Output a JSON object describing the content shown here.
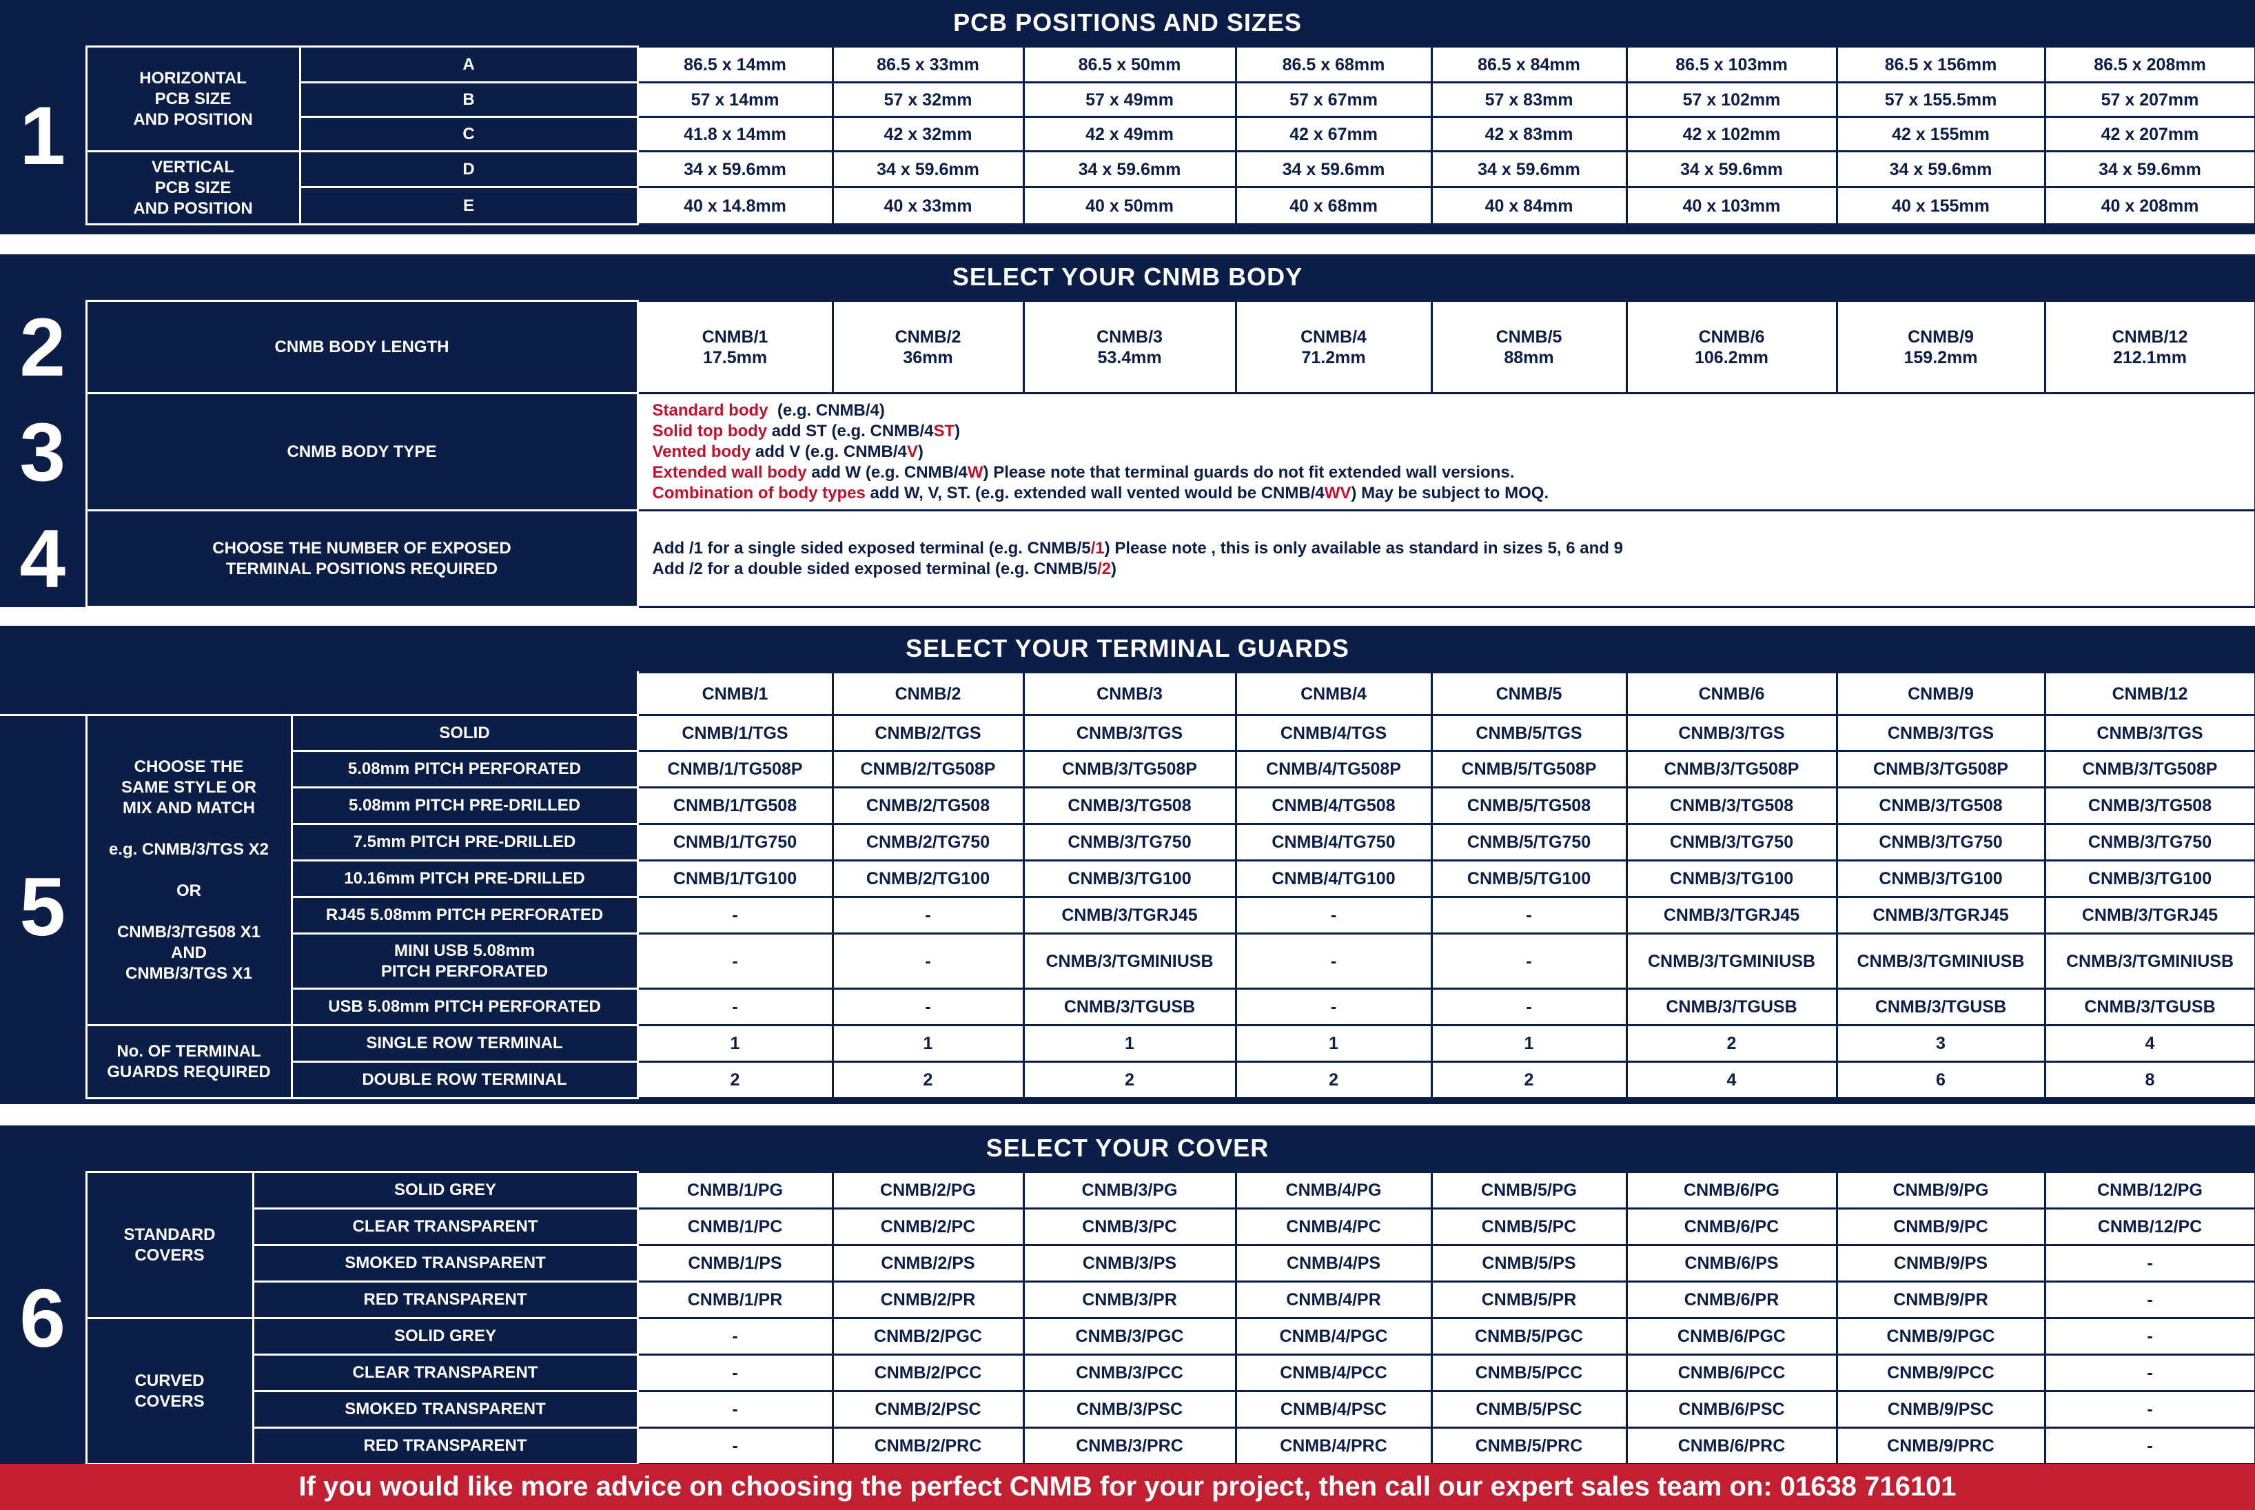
{
  "sizes_cols": [
    "",
    "",
    "",
    "",
    "",
    "",
    "",
    ""
  ],
  "s1": {
    "num": "1",
    "title": "PCB POSITIONS AND SIZES",
    "horizontal_label": "HORIZONTAL\nPCB SIZE\nAND POSITION",
    "vertical_label": "VERTICAL\nPCB SIZE\nAND POSITION",
    "rows": [
      {
        "pos": "A",
        "cells": [
          "86.5 x 14mm",
          "86.5 x 33mm",
          "86.5 x 50mm",
          "86.5 x 68mm",
          "86.5 x 84mm",
          "86.5 x 103mm",
          "86.5 x 156mm",
          "86.5 x 208mm"
        ]
      },
      {
        "pos": "B",
        "cells": [
          "57 x 14mm",
          "57 x 32mm",
          "57 x 49mm",
          "57 x 67mm",
          "57 x 83mm",
          "57 x 102mm",
          "57 x 155.5mm",
          "57 x 207mm"
        ]
      },
      {
        "pos": "C",
        "cells": [
          "41.8 x 14mm",
          "42 x 32mm",
          "42 x 49mm",
          "42 x 67mm",
          "42 x 83mm",
          "42 x 102mm",
          "42 x 155mm",
          "42 x 207mm"
        ]
      },
      {
        "pos": "D",
        "cells": [
          "34 x 59.6mm",
          "34 x 59.6mm",
          "34 x 59.6mm",
          "34 x 59.6mm",
          "34 x 59.6mm",
          "34 x 59.6mm",
          "34 x 59.6mm",
          "34 x 59.6mm"
        ]
      },
      {
        "pos": "E",
        "cells": [
          "40 x 14.8mm",
          "40 x 33mm",
          "40 x 50mm",
          "40 x 68mm",
          "40 x 84mm",
          "40 x 103mm",
          "40 x 155mm",
          "40 x 208mm"
        ]
      }
    ]
  },
  "s2": {
    "title": "SELECT YOUR CNMB BODY",
    "num": "2",
    "label": "CNMB BODY LENGTH",
    "cells": [
      {
        "name": "CNMB/1",
        "len": "17.5mm"
      },
      {
        "name": "CNMB/2",
        "len": "36mm"
      },
      {
        "name": "CNMB/3",
        "len": "53.4mm"
      },
      {
        "name": "CNMB/4",
        "len": "71.2mm"
      },
      {
        "name": "CNMB/5",
        "len": "88mm"
      },
      {
        "name": "CNMB/6",
        "len": "106.2mm"
      },
      {
        "name": "CNMB/9",
        "len": "159.2mm"
      },
      {
        "name": "CNMB/12",
        "len": "212.1mm"
      }
    ]
  },
  "s3": {
    "num": "3",
    "label": "CNMB BODY TYPE",
    "lines": [
      [
        {
          "t": "Standard body",
          "red": true
        },
        {
          "t": "  (e.g. CNMB/4)"
        }
      ],
      [
        {
          "t": "Solid top body",
          "red": true
        },
        {
          "t": " add ST (e.g. CNMB/4"
        },
        {
          "t": "ST",
          "red": true
        },
        {
          "t": ")"
        }
      ],
      [
        {
          "t": "Vented body",
          "red": true
        },
        {
          "t": " add V (e.g. CNMB/4"
        },
        {
          "t": "V",
          "red": true
        },
        {
          "t": ")"
        }
      ],
      [
        {
          "t": "Extended wall body",
          "red": true
        },
        {
          "t": " add W (e.g. CNMB/4"
        },
        {
          "t": "W",
          "red": true
        },
        {
          "t": ") Please note that terminal guards do not fit extended wall versions."
        }
      ],
      [
        {
          "t": "Combination of body types",
          "red": true
        },
        {
          "t": " add W, V, ST. (e.g. extended wall vented would be CNMB/4"
        },
        {
          "t": "WV",
          "red": true
        },
        {
          "t": ") May be subject to MOQ."
        }
      ]
    ]
  },
  "s4": {
    "num": "4",
    "label": "CHOOSE THE NUMBER OF EXPOSED\nTERMINAL  POSITIONS REQUIRED",
    "lines": [
      [
        {
          "t": "Add /1 for a single sided exposed terminal (e.g. CNMB/5"
        },
        {
          "t": "/1",
          "red": true
        },
        {
          "t": ") Please note , this is only available as standard in sizes 5, 6 and 9"
        }
      ],
      [
        {
          "t": "Add /2 for a double sided exposed terminal (e.g. CNMB/5"
        },
        {
          "t": "/2",
          "red": true
        },
        {
          "t": ")"
        }
      ]
    ]
  },
  "s5": {
    "title": "SELECT YOUR TERMINAL GUARDS",
    "num": "5",
    "headers": [
      "CNMB/1",
      "CNMB/2",
      "CNMB/3",
      "CNMB/4",
      "CNMB/5",
      "CNMB/6",
      "CNMB/9",
      "CNMB/12"
    ],
    "choose_label": "CHOOSE THE\nSAME STYLE OR\nMIX AND MATCH\n\ne.g. CNMB/3/TGS X2\n\nOR\n\nCNMB/3/TG508 X1\nAND\nCNMB/3/TGS X1",
    "guards_label": "No. OF TERMINAL\nGUARDS REQUIRED",
    "rows": [
      {
        "label": "SOLID",
        "cells": [
          "CNMB/1/TGS",
          "CNMB/2/TGS",
          "CNMB/3/TGS",
          "CNMB/4/TGS",
          "CNMB/5/TGS",
          "CNMB/3/TGS",
          "CNMB/3/TGS",
          "CNMB/3/TGS"
        ]
      },
      {
        "label": "5.08mm PITCH PERFORATED",
        "cells": [
          "CNMB/1/TG508P",
          "CNMB/2/TG508P",
          "CNMB/3/TG508P",
          "CNMB/4/TG508P",
          "CNMB/5/TG508P",
          "CNMB/3/TG508P",
          "CNMB/3/TG508P",
          "CNMB/3/TG508P"
        ]
      },
      {
        "label": "5.08mm PITCH PRE-DRILLED",
        "cells": [
          "CNMB/1/TG508",
          "CNMB/2/TG508",
          "CNMB/3/TG508",
          "CNMB/4/TG508",
          "CNMB/5/TG508",
          "CNMB/3/TG508",
          "CNMB/3/TG508",
          "CNMB/3/TG508"
        ]
      },
      {
        "label": "7.5mm PITCH PRE-DRILLED",
        "cells": [
          "CNMB/1/TG750",
          "CNMB/2/TG750",
          "CNMB/3/TG750",
          "CNMB/4/TG750",
          "CNMB/5/TG750",
          "CNMB/3/TG750",
          "CNMB/3/TG750",
          "CNMB/3/TG750"
        ]
      },
      {
        "label": "10.16mm PITCH PRE-DRILLED",
        "cells": [
          "CNMB/1/TG100",
          "CNMB/2/TG100",
          "CNMB/3/TG100",
          "CNMB/4/TG100",
          "CNMB/5/TG100",
          "CNMB/3/TG100",
          "CNMB/3/TG100",
          "CNMB/3/TG100"
        ]
      },
      {
        "label": "RJ45 5.08mm PITCH PERFORATED",
        "cells": [
          "-",
          "-",
          "CNMB/3/TGRJ45",
          "-",
          "-",
          "CNMB/3/TGRJ45",
          "CNMB/3/TGRJ45",
          "CNMB/3/TGRJ45"
        ]
      },
      {
        "label": "MINI USB 5.08mm\nPITCH PERFORATED",
        "cells": [
          "-",
          "-",
          "CNMB/3/TGMINIUSB",
          "-",
          "-",
          "CNMB/3/TGMINIUSB",
          "CNMB/3/TGMINIUSB",
          "CNMB/3/TGMINIUSB"
        ]
      },
      {
        "label": "USB 5.08mm PITCH PERFORATED",
        "cells": [
          "-",
          "-",
          "CNMB/3/TGUSB",
          "-",
          "-",
          "CNMB/3/TGUSB",
          "CNMB/3/TGUSB",
          "CNMB/3/TGUSB"
        ]
      }
    ],
    "guard_rows": [
      {
        "label": "SINGLE ROW TERMINAL",
        "cells": [
          "1",
          "1",
          "1",
          "1",
          "1",
          "2",
          "3",
          "4"
        ]
      },
      {
        "label": "DOUBLE ROW TERMINAL",
        "cells": [
          "2",
          "2",
          "2",
          "2",
          "2",
          "4",
          "6",
          "8"
        ]
      }
    ]
  },
  "s6": {
    "title": "SELECT YOUR COVER",
    "num": "6",
    "standard_label": "STANDARD\nCOVERS",
    "curved_label": "CURVED\nCOVERS",
    "standard_rows": [
      {
        "label": "SOLID GREY",
        "cells": [
          "CNMB/1/PG",
          "CNMB/2/PG",
          "CNMB/3/PG",
          "CNMB/4/PG",
          "CNMB/5/PG",
          "CNMB/6/PG",
          "CNMB/9/PG",
          "CNMB/12/PG"
        ]
      },
      {
        "label": "CLEAR TRANSPARENT",
        "cells": [
          "CNMB/1/PC",
          "CNMB/2/PC",
          "CNMB/3/PC",
          "CNMB/4/PC",
          "CNMB/5/PC",
          "CNMB/6/PC",
          "CNMB/9/PC",
          "CNMB/12/PC"
        ]
      },
      {
        "label": "SMOKED TRANSPARENT",
        "cells": [
          "CNMB/1/PS",
          "CNMB/2/PS",
          "CNMB/3/PS",
          "CNMB/4/PS",
          "CNMB/5/PS",
          "CNMB/6/PS",
          "CNMB/9/PS",
          "-"
        ]
      },
      {
        "label": "RED TRANSPARENT",
        "cells": [
          "CNMB/1/PR",
          "CNMB/2/PR",
          "CNMB/3/PR",
          "CNMB/4/PR",
          "CNMB/5/PR",
          "CNMB/6/PR",
          "CNMB/9/PR",
          "-"
        ]
      }
    ],
    "curved_rows": [
      {
        "label": "SOLID GREY",
        "cells": [
          "-",
          "CNMB/2/PGC",
          "CNMB/3/PGC",
          "CNMB/4/PGC",
          "CNMB/5/PGC",
          "CNMB/6/PGC",
          "CNMB/9/PGC",
          "-"
        ]
      },
      {
        "label": "CLEAR TRANSPARENT",
        "cells": [
          "-",
          "CNMB/2/PCC",
          "CNMB/3/PCC",
          "CNMB/4/PCC",
          "CNMB/5/PCC",
          "CNMB/6/PCC",
          "CNMB/9/PCC",
          "-"
        ]
      },
      {
        "label": "SMOKED TRANSPARENT",
        "cells": [
          "-",
          "CNMB/2/PSC",
          "CNMB/3/PSC",
          "CNMB/4/PSC",
          "CNMB/5/PSC",
          "CNMB/6/PSC",
          "CNMB/9/PSC",
          "-"
        ]
      },
      {
        "label": "RED TRANSPARENT",
        "cells": [
          "-",
          "CNMB/2/PRC",
          "CNMB/3/PRC",
          "CNMB/4/PRC",
          "CNMB/5/PRC",
          "CNMB/6/PRC",
          "CNMB/9/PRC",
          "-"
        ]
      }
    ]
  },
  "footer": "If you would like more advice on choosing the perfect CNMB for your project, then call our expert sales team on: 01638 716101",
  "colors": {
    "navy": "#0b1e47",
    "red": "#c21f33"
  }
}
